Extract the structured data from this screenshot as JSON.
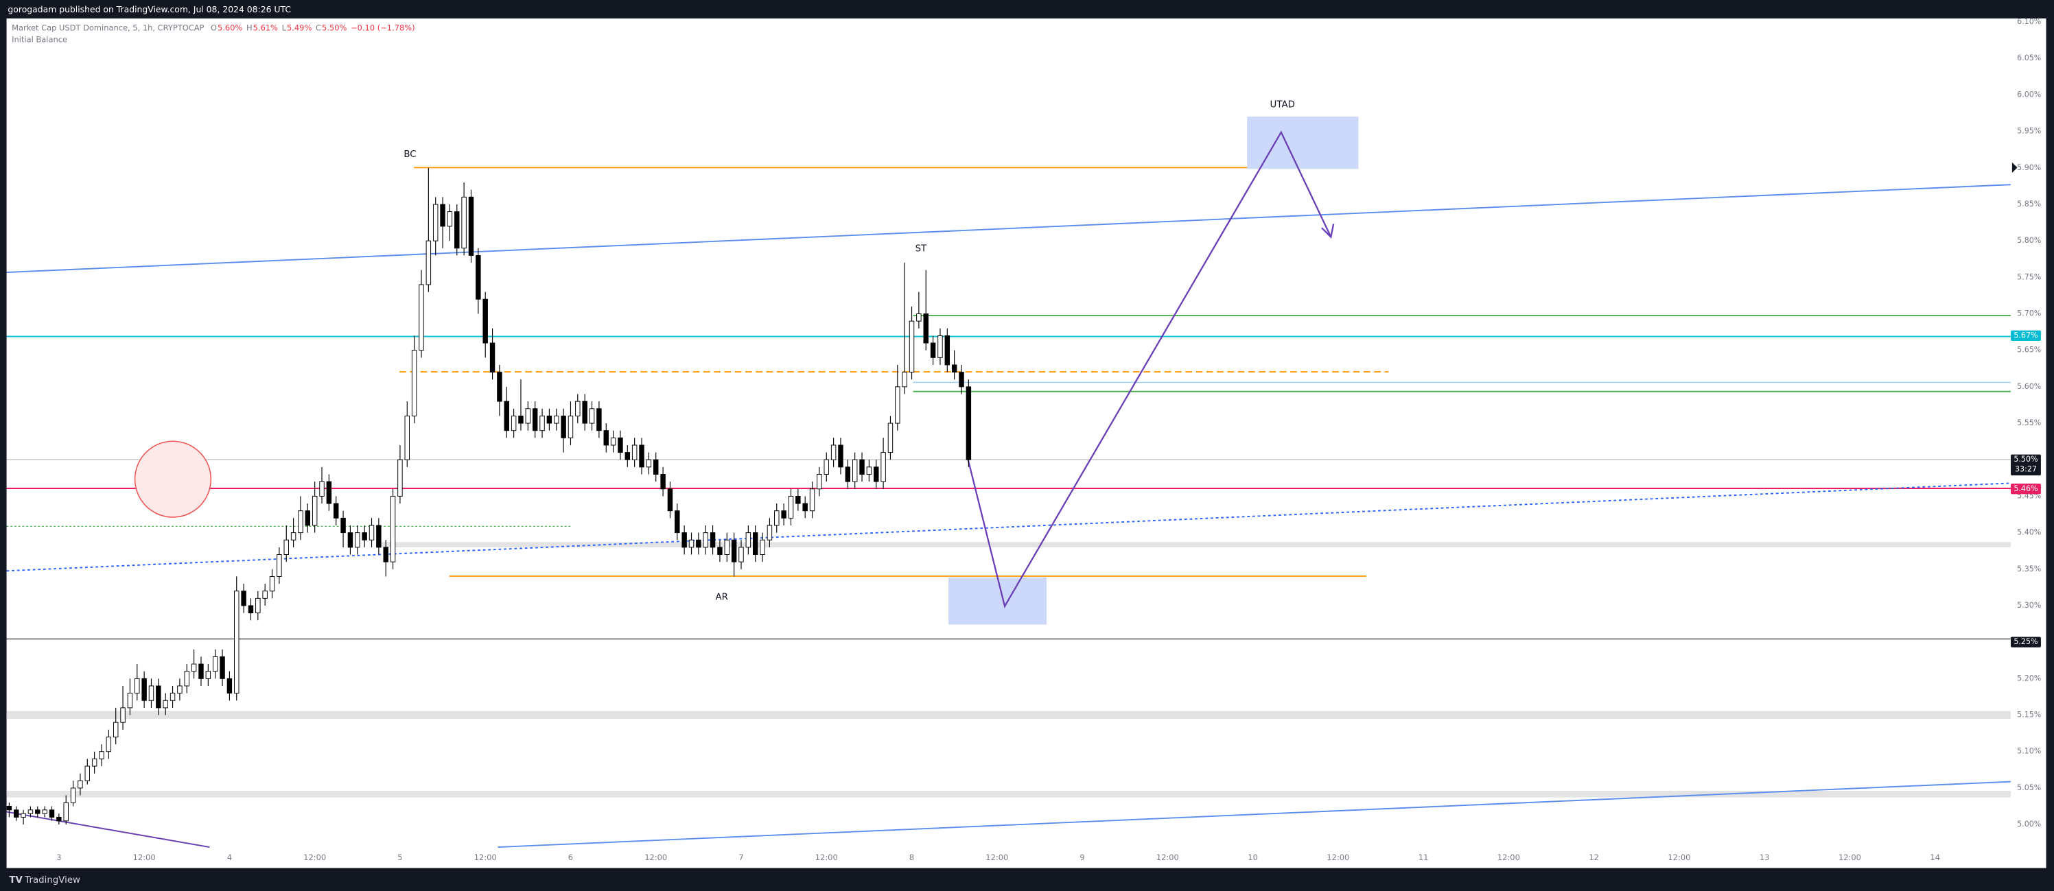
{
  "header": {
    "publisher": "gorogadam published on TradingView.com, Jul 08, 2024 08:26 UTC"
  },
  "footer": {
    "brand": "TradingView"
  },
  "chart_data": {
    "type": "candlestick",
    "title": "Market Cap USDT Dominance, 5, 1h, CRYPTOCAP",
    "legend_values": [
      {
        "key": "O",
        "text": "5.60%"
      },
      {
        "key": "H",
        "text": "5.61%"
      },
      {
        "key": "L",
        "text": "5.49%"
      },
      {
        "key": "C",
        "text": "5.50%"
      }
    ],
    "change": "−0.10 (−1.78%)",
    "indicator": "Initial Balance",
    "annotations": [
      "BC",
      "ST",
      "AR",
      "UTAD"
    ],
    "up_color": "#ffffff",
    "down_color": "#000000",
    "xlim": [
      -7.37,
      274.65
    ],
    "ylim": [
      4.969,
      6.105
    ],
    "grid": false,
    "xticks": [
      {
        "value": 0,
        "label": "3"
      },
      {
        "value": 12,
        "label": "12:00"
      },
      {
        "value": 24,
        "label": "4"
      },
      {
        "value": 36,
        "label": "12:00"
      },
      {
        "value": 48,
        "label": "5"
      },
      {
        "value": 60,
        "label": "12:00"
      },
      {
        "value": 72,
        "label": "6"
      },
      {
        "value": 84,
        "label": "12:00"
      },
      {
        "value": 96,
        "label": "7"
      },
      {
        "value": 108,
        "label": "12:00"
      },
      {
        "value": 120,
        "label": "8"
      },
      {
        "value": 132,
        "label": "12:00"
      },
      {
        "value": 144,
        "label": "9"
      },
      {
        "value": 156,
        "label": "12:00"
      },
      {
        "value": 168,
        "label": "10"
      },
      {
        "value": 180,
        "label": "12:00"
      },
      {
        "value": 192,
        "label": "11"
      },
      {
        "value": 204,
        "label": "12:00"
      },
      {
        "value": 216,
        "label": "12"
      },
      {
        "value": 228,
        "label": "12:00"
      },
      {
        "value": 240,
        "label": "13"
      },
      {
        "value": 252,
        "label": "12:00"
      },
      {
        "value": 264,
        "label": "14"
      }
    ],
    "yticks": [
      {
        "value": 5,
        "label": "5.00%"
      },
      {
        "value": 5.05,
        "label": "5.05%"
      },
      {
        "value": 5.1,
        "label": "5.10%"
      },
      {
        "value": 5.15,
        "label": "5.15%"
      },
      {
        "value": 5.2,
        "label": "5.20%"
      },
      {
        "value": 5.25,
        "label": "5.25%"
      },
      {
        "value": 5.3,
        "label": "5.30%"
      },
      {
        "value": 5.35,
        "label": "5.35%"
      },
      {
        "value": 5.4,
        "label": "5.40%"
      },
      {
        "value": 5.45,
        "label": "5.45%"
      },
      {
        "value": 5.5,
        "label": "5.50%"
      },
      {
        "value": 5.55,
        "label": "5.55%"
      },
      {
        "value": 5.6,
        "label": "5.60%"
      },
      {
        "value": 5.65,
        "label": "5.65%"
      },
      {
        "value": 5.7,
        "label": "5.70%"
      },
      {
        "value": 5.75,
        "label": "5.75%"
      },
      {
        "value": 5.8,
        "label": "5.80%"
      },
      {
        "value": 5.85,
        "label": "5.85%"
      },
      {
        "value": 5.9,
        "label": "5.90%"
      },
      {
        "value": 5.95,
        "label": "5.95%"
      },
      {
        "value": 6,
        "label": "6.00%"
      },
      {
        "value": 6.05,
        "label": "6.05%"
      },
      {
        "value": 6.1,
        "label": "6.10%"
      }
    ],
    "price_tags": [
      {
        "value": 5.67,
        "label": "5.67%",
        "color": "#00bcd4"
      },
      {
        "value": 5.5,
        "label": "5.50%",
        "color": "#131722",
        "timer": "33:27"
      },
      {
        "value": 5.46,
        "label": "5.46%",
        "color": "#e91e63"
      },
      {
        "value": 5.25,
        "label": "5.25%",
        "color": "#131722"
      }
    ],
    "x": [
      -7,
      -6,
      -5,
      -4,
      -3,
      -2,
      -1,
      0,
      1,
      2,
      3,
      4,
      5,
      6,
      7,
      8,
      9,
      10,
      11,
      12,
      13,
      14,
      15,
      16,
      17,
      18,
      19,
      20,
      21,
      22,
      23,
      24,
      25,
      26,
      27,
      28,
      29,
      30,
      31,
      32,
      33,
      34,
      35,
      36,
      37,
      38,
      39,
      40,
      41,
      42,
      43,
      44,
      45,
      46,
      47,
      48,
      49,
      50,
      51,
      52,
      53,
      54,
      55,
      56,
      57,
      58,
      59,
      60,
      61,
      62,
      63,
      64,
      65,
      66,
      67,
      68,
      69,
      70,
      71,
      72,
      73,
      74,
      75,
      76,
      77,
      78,
      79,
      80,
      81,
      82,
      83,
      84,
      85,
      86,
      87,
      88,
      89,
      90,
      91,
      92,
      93,
      94,
      95,
      96,
      97,
      98,
      99,
      100,
      101,
      102,
      103,
      104,
      105,
      106,
      107,
      108,
      109,
      110,
      111,
      112,
      113,
      114,
      115,
      116,
      117,
      118,
      119,
      120,
      121,
      122,
      123,
      124,
      125,
      126,
      127,
      128
    ],
    "candles": [
      [
        5.025,
        5.03,
        5.01,
        5.02
      ],
      [
        5.02,
        5.025,
        5.005,
        5.01
      ],
      [
        5.01,
        5.02,
        5.0,
        5.015
      ],
      [
        5.015,
        5.025,
        5.01,
        5.02
      ],
      [
        5.02,
        5.025,
        5.01,
        5.015
      ],
      [
        5.015,
        5.025,
        5.01,
        5.02
      ],
      [
        5.02,
        5.025,
        5.005,
        5.01
      ],
      [
        5.01,
        5.015,
        5.0,
        5.005
      ],
      [
        5.005,
        5.04,
        5.0,
        5.03
      ],
      [
        5.03,
        5.06,
        5.025,
        5.05
      ],
      [
        5.05,
        5.07,
        5.04,
        5.06
      ],
      [
        5.06,
        5.09,
        5.055,
        5.08
      ],
      [
        5.08,
        5.1,
        5.07,
        5.09
      ],
      [
        5.09,
        5.11,
        5.08,
        5.1
      ],
      [
        5.1,
        5.13,
        5.09,
        5.12
      ],
      [
        5.12,
        5.16,
        5.11,
        5.14
      ],
      [
        5.14,
        5.19,
        5.13,
        5.16
      ],
      [
        5.16,
        5.2,
        5.15,
        5.18
      ],
      [
        5.18,
        5.22,
        5.17,
        5.2
      ],
      [
        5.2,
        5.21,
        5.16,
        5.17
      ],
      [
        5.17,
        5.2,
        5.16,
        5.19
      ],
      [
        5.19,
        5.2,
        5.15,
        5.16
      ],
      [
        5.16,
        5.18,
        5.15,
        5.17
      ],
      [
        5.17,
        5.19,
        5.16,
        5.18
      ],
      [
        5.18,
        5.2,
        5.17,
        5.19
      ],
      [
        5.19,
        5.22,
        5.18,
        5.21
      ],
      [
        5.21,
        5.24,
        5.2,
        5.22
      ],
      [
        5.22,
        5.23,
        5.19,
        5.2
      ],
      [
        5.2,
        5.22,
        5.19,
        5.21
      ],
      [
        5.21,
        5.24,
        5.2,
        5.23
      ],
      [
        5.23,
        5.24,
        5.19,
        5.2
      ],
      [
        5.2,
        5.21,
        5.17,
        5.18
      ],
      [
        5.18,
        5.34,
        5.17,
        5.32
      ],
      [
        5.32,
        5.33,
        5.29,
        5.3
      ],
      [
        5.3,
        5.31,
        5.28,
        5.29
      ],
      [
        5.29,
        5.32,
        5.28,
        5.31
      ],
      [
        5.31,
        5.33,
        5.3,
        5.32
      ],
      [
        5.32,
        5.35,
        5.31,
        5.34
      ],
      [
        5.34,
        5.38,
        5.33,
        5.37
      ],
      [
        5.37,
        5.41,
        5.36,
        5.39
      ],
      [
        5.39,
        5.42,
        5.38,
        5.4
      ],
      [
        5.4,
        5.45,
        5.39,
        5.43
      ],
      [
        5.43,
        5.44,
        5.4,
        5.41
      ],
      [
        5.41,
        5.47,
        5.4,
        5.45
      ],
      [
        5.45,
        5.49,
        5.44,
        5.47
      ],
      [
        5.47,
        5.48,
        5.43,
        5.44
      ],
      [
        5.44,
        5.45,
        5.41,
        5.42
      ],
      [
        5.42,
        5.43,
        5.38,
        5.4
      ],
      [
        5.4,
        5.41,
        5.37,
        5.38
      ],
      [
        5.38,
        5.41,
        5.37,
        5.4
      ],
      [
        5.4,
        5.41,
        5.38,
        5.39
      ],
      [
        5.39,
        5.42,
        5.38,
        5.41
      ],
      [
        5.41,
        5.42,
        5.37,
        5.38
      ],
      [
        5.38,
        5.39,
        5.34,
        5.36
      ],
      [
        5.36,
        5.46,
        5.35,
        5.45
      ],
      [
        5.45,
        5.52,
        5.44,
        5.5
      ],
      [
        5.5,
        5.58,
        5.49,
        5.56
      ],
      [
        5.56,
        5.67,
        5.55,
        5.65
      ],
      [
        5.65,
        5.76,
        5.64,
        5.74
      ],
      [
        5.74,
        5.9,
        5.73,
        5.8
      ],
      [
        5.8,
        5.86,
        5.78,
        5.85
      ],
      [
        5.85,
        5.86,
        5.79,
        5.82
      ],
      [
        5.82,
        5.85,
        5.8,
        5.84
      ],
      [
        5.84,
        5.85,
        5.78,
        5.79
      ],
      [
        5.79,
        5.88,
        5.78,
        5.86
      ],
      [
        5.86,
        5.87,
        5.77,
        5.78
      ],
      [
        5.78,
        5.79,
        5.7,
        5.72
      ],
      [
        5.72,
        5.73,
        5.64,
        5.66
      ],
      [
        5.66,
        5.68,
        5.61,
        5.62
      ],
      [
        5.62,
        5.63,
        5.56,
        5.58
      ],
      [
        5.58,
        5.6,
        5.53,
        5.54
      ],
      [
        5.54,
        5.57,
        5.53,
        5.56
      ],
      [
        5.56,
        5.61,
        5.54,
        5.55
      ],
      [
        5.55,
        5.58,
        5.54,
        5.57
      ],
      [
        5.57,
        5.58,
        5.53,
        5.54
      ],
      [
        5.54,
        5.57,
        5.53,
        5.56
      ],
      [
        5.56,
        5.57,
        5.54,
        5.55
      ],
      [
        5.55,
        5.57,
        5.54,
        5.56
      ],
      [
        5.56,
        5.57,
        5.51,
        5.53
      ],
      [
        5.53,
        5.58,
        5.52,
        5.56
      ],
      [
        5.56,
        5.59,
        5.55,
        5.58
      ],
      [
        5.58,
        5.59,
        5.54,
        5.55
      ],
      [
        5.55,
        5.58,
        5.54,
        5.57
      ],
      [
        5.57,
        5.58,
        5.53,
        5.54
      ],
      [
        5.54,
        5.55,
        5.51,
        5.52
      ],
      [
        5.52,
        5.54,
        5.51,
        5.53
      ],
      [
        5.53,
        5.54,
        5.5,
        5.51
      ],
      [
        5.51,
        5.52,
        5.49,
        5.5
      ],
      [
        5.5,
        5.53,
        5.49,
        5.52
      ],
      [
        5.52,
        5.53,
        5.48,
        5.49
      ],
      [
        5.49,
        5.51,
        5.48,
        5.5
      ],
      [
        5.5,
        5.51,
        5.47,
        5.48
      ],
      [
        5.48,
        5.49,
        5.45,
        5.46
      ],
      [
        5.46,
        5.47,
        5.42,
        5.43
      ],
      [
        5.43,
        5.44,
        5.39,
        5.4
      ],
      [
        5.4,
        5.41,
        5.37,
        5.38
      ],
      [
        5.38,
        5.4,
        5.37,
        5.39
      ],
      [
        5.39,
        5.4,
        5.37,
        5.38
      ],
      [
        5.38,
        5.41,
        5.37,
        5.4
      ],
      [
        5.4,
        5.41,
        5.37,
        5.38
      ],
      [
        5.38,
        5.39,
        5.36,
        5.37
      ],
      [
        5.37,
        5.4,
        5.36,
        5.39
      ],
      [
        5.39,
        5.4,
        5.34,
        5.36
      ],
      [
        5.36,
        5.39,
        5.35,
        5.38
      ],
      [
        5.38,
        5.41,
        5.37,
        5.4
      ],
      [
        5.4,
        5.41,
        5.36,
        5.37
      ],
      [
        5.37,
        5.4,
        5.36,
        5.39
      ],
      [
        5.39,
        5.42,
        5.38,
        5.41
      ],
      [
        5.41,
        5.44,
        5.4,
        5.43
      ],
      [
        5.43,
        5.44,
        5.41,
        5.42
      ],
      [
        5.42,
        5.46,
        5.41,
        5.45
      ],
      [
        5.45,
        5.46,
        5.43,
        5.44
      ],
      [
        5.44,
        5.45,
        5.42,
        5.43
      ],
      [
        5.43,
        5.47,
        5.42,
        5.46
      ],
      [
        5.46,
        5.49,
        5.45,
        5.48
      ],
      [
        5.48,
        5.51,
        5.47,
        5.5
      ],
      [
        5.5,
        5.53,
        5.49,
        5.52
      ],
      [
        5.52,
        5.53,
        5.48,
        5.49
      ],
      [
        5.49,
        5.5,
        5.46,
        5.47
      ],
      [
        5.47,
        5.51,
        5.46,
        5.5
      ],
      [
        5.5,
        5.51,
        5.47,
        5.48
      ],
      [
        5.48,
        5.5,
        5.47,
        5.49
      ],
      [
        5.49,
        5.5,
        5.46,
        5.47
      ],
      [
        5.47,
        5.53,
        5.46,
        5.51
      ],
      [
        5.51,
        5.56,
        5.5,
        5.55
      ],
      [
        5.55,
        5.63,
        5.54,
        5.6
      ],
      [
        5.6,
        5.77,
        5.59,
        5.62
      ],
      [
        5.62,
        5.71,
        5.61,
        5.69
      ],
      [
        5.69,
        5.73,
        5.68,
        5.7
      ],
      [
        5.7,
        5.76,
        5.65,
        5.66
      ],
      [
        5.66,
        5.67,
        5.63,
        5.64
      ],
      [
        5.64,
        5.68,
        5.63,
        5.67
      ],
      [
        5.67,
        5.68,
        5.62,
        5.63
      ],
      [
        5.63,
        5.65,
        5.61,
        5.62
      ],
      [
        5.62,
        5.63,
        5.59,
        5.6
      ],
      [
        5.6,
        5.61,
        5.49,
        5.5
      ]
    ]
  }
}
